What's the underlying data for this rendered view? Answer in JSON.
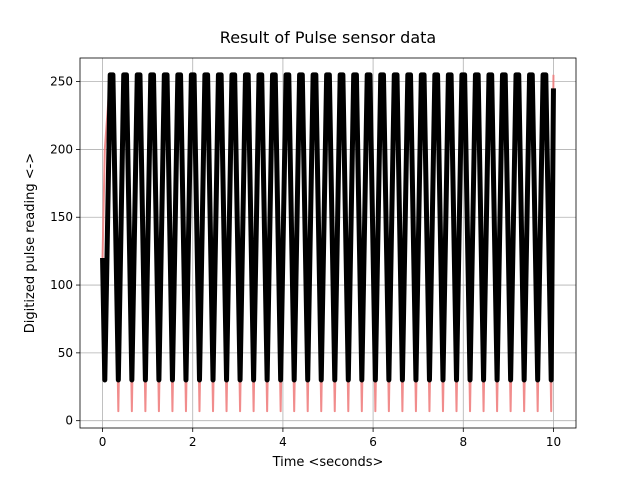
{
  "chart_data": {
    "type": "line",
    "title": "Result of Pulse sensor data",
    "x_label": "Time <seconds>",
    "y_label": "Digitized pulse reading <->",
    "x": [
      0,
      0.05,
      0.17,
      0.23,
      0.35,
      0.47,
      0.53,
      0.65,
      0.77,
      0.83,
      0.95,
      1.07,
      1.13,
      1.25,
      1.37,
      1.43,
      1.55,
      1.67,
      1.73,
      1.85,
      1.97,
      2.03,
      2.15,
      2.27,
      2.33,
      2.45,
      2.57,
      2.63,
      2.75,
      2.87,
      2.93,
      3.05,
      3.17,
      3.23,
      3.35,
      3.47,
      3.53,
      3.65,
      3.77,
      3.83,
      3.95,
      4.07,
      4.13,
      4.25,
      4.37,
      4.43,
      4.55,
      4.67,
      4.73,
      4.85,
      4.97,
      5.03,
      5.15,
      5.27,
      5.33,
      5.45,
      5.57,
      5.63,
      5.75,
      5.87,
      5.93,
      6.05,
      6.17,
      6.23,
      6.35,
      6.47,
      6.53,
      6.65,
      6.77,
      6.83,
      6.95,
      7.07,
      7.13,
      7.25,
      7.37,
      7.43,
      7.55,
      7.67,
      7.73,
      7.85,
      7.97,
      8.03,
      8.15,
      8.27,
      8.33,
      8.45,
      8.57,
      8.63,
      8.75,
      8.87,
      8.93,
      9.05,
      9.17,
      9.23,
      9.35,
      9.47,
      9.53,
      9.65,
      9.77,
      9.83,
      9.95,
      10
    ],
    "series": [
      {
        "color": "#f08080",
        "values": [
          120,
          200,
          255,
          255,
          7,
          255,
          255,
          7,
          255,
          255,
          7,
          255,
          255,
          7,
          255,
          255,
          7,
          255,
          255,
          7,
          255,
          255,
          7,
          255,
          255,
          7,
          255,
          255,
          7,
          255,
          255,
          7,
          255,
          255,
          7,
          255,
          255,
          7,
          255,
          255,
          7,
          255,
          255,
          7,
          255,
          255,
          7,
          255,
          255,
          7,
          255,
          255,
          7,
          255,
          255,
          7,
          255,
          255,
          7,
          255,
          255,
          7,
          255,
          255,
          7,
          255,
          255,
          7,
          255,
          255,
          7,
          255,
          255,
          7,
          255,
          255,
          7,
          255,
          255,
          7,
          255,
          255,
          7,
          255,
          255,
          7,
          255,
          255,
          7,
          255,
          255,
          7,
          255,
          255,
          7,
          255,
          255,
          7,
          255,
          255,
          7,
          255
        ]
      },
      {
        "color": "#000000",
        "values": [
          120,
          30,
          255,
          255,
          30,
          255,
          255,
          30,
          255,
          255,
          30,
          255,
          255,
          30,
          255,
          255,
          30,
          255,
          255,
          30,
          255,
          255,
          30,
          255,
          255,
          30,
          255,
          255,
          30,
          255,
          255,
          30,
          255,
          255,
          30,
          255,
          255,
          30,
          255,
          255,
          30,
          255,
          255,
          30,
          255,
          255,
          30,
          255,
          255,
          30,
          255,
          255,
          30,
          255,
          255,
          30,
          255,
          255,
          30,
          255,
          255,
          30,
          255,
          255,
          30,
          255,
          255,
          30,
          255,
          255,
          30,
          255,
          255,
          30,
          255,
          255,
          30,
          255,
          255,
          30,
          255,
          255,
          30,
          255,
          255,
          30,
          255,
          255,
          30,
          255,
          255,
          30,
          255,
          255,
          30,
          255,
          255,
          30,
          255,
          255,
          30,
          245
        ]
      }
    ],
    "xlim": [
      -0.5,
      10.5
    ],
    "ylim": [
      -5.4,
      267.4
    ],
    "xticks": [
      0,
      2,
      4,
      6,
      8,
      10
    ],
    "yticks": [
      0,
      50,
      100,
      150,
      200,
      250
    ],
    "grid": true
  }
}
